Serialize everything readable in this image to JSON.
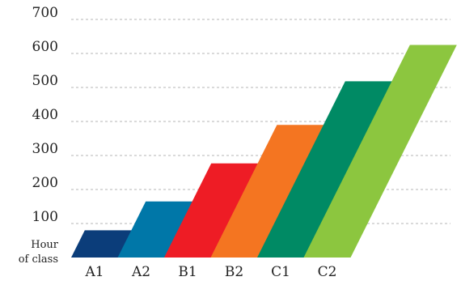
{
  "chart_data": {
    "type": "bar",
    "title": "",
    "xlabel": "",
    "ylabel": "Hour of class",
    "ylabel_lines": [
      "Hour",
      "of class"
    ],
    "categories": [
      "A1",
      "A2",
      "B1",
      "B2",
      "C1",
      "C2"
    ],
    "values": [
      80,
      165,
      277,
      390,
      518,
      625
    ],
    "ylim": [
      0,
      700
    ],
    "yticks": [
      100,
      200,
      300,
      400,
      500,
      600,
      700
    ],
    "grid": true,
    "legend": "none",
    "colors": [
      "#0b3d7a",
      "#0077a8",
      "#ee1c25",
      "#f47521",
      "#008a64",
      "#8cc63f"
    ]
  }
}
